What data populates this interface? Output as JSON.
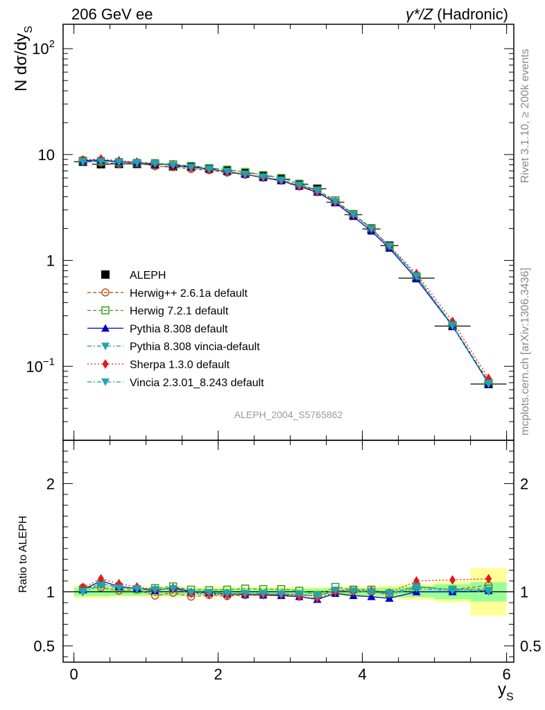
{
  "header": {
    "left": "206 GeV ee",
    "right_prefix": "γ*/Z",
    "right_suffix": " (Hadronic)"
  },
  "side": {
    "rivet": "Rivet 3.1.10, ≥ 200k events",
    "source": "mcplots.cern.ch [arXiv:1306.3436]"
  },
  "watermark": "ALEPH_2004_S5765862",
  "colors": {
    "data": "#000000",
    "herwigpp": "#b8570f",
    "herwig7": "#3b9e1c",
    "pythia": "#0000c0",
    "pythia_vincia": "#1fa3b8",
    "sherpa": "#e8161b",
    "vincia": "#1fa3b8",
    "band_inner": "#99ff99",
    "band_outer": "#ffff99"
  },
  "chart_data": [
    {
      "type": "line",
      "panel": "main",
      "ylabel_main": "N dσ/dy",
      "ylabel_sub": "S",
      "yscale": "log",
      "ylim": [
        0.02,
        170
      ],
      "xlim": [
        -0.15,
        6.1
      ],
      "y_tick_labels": [
        {
          "value": 100,
          "base": "10",
          "exp": "2"
        },
        {
          "value": 10,
          "base": "10",
          "exp": ""
        },
        {
          "value": 1,
          "base": "1",
          "exp": ""
        },
        {
          "value": 0.1,
          "base": "10",
          "exp": "−1"
        }
      ],
      "x": [
        0.125,
        0.375,
        0.625,
        0.875,
        1.125,
        1.375,
        1.625,
        1.875,
        2.125,
        2.375,
        2.625,
        2.875,
        3.125,
        3.375,
        3.625,
        3.875,
        4.125,
        4.375,
        4.75,
        5.25,
        5.75
      ],
      "xerr": [
        0.125,
        0.125,
        0.125,
        0.125,
        0.125,
        0.125,
        0.125,
        0.125,
        0.125,
        0.125,
        0.125,
        0.125,
        0.125,
        0.125,
        0.125,
        0.125,
        0.125,
        0.125,
        0.25,
        0.25,
        0.25
      ],
      "series": [
        {
          "name": "ALEPH",
          "key": "data",
          "marker": "square-filled",
          "values": [
            8.55,
            8.1,
            8.15,
            8.15,
            8.05,
            7.7,
            7.65,
            7.35,
            7.05,
            6.65,
            6.25,
            5.85,
            5.25,
            4.75,
            3.55,
            2.7,
            1.98,
            1.38,
            0.68,
            0.24,
            0.068
          ]
        },
        {
          "name": "Herwig++ 2.6.1a default",
          "key": "herwigpp",
          "marker": "circle-open",
          "dash": "5,3",
          "values": [
            8.9,
            8.4,
            8.2,
            8.3,
            7.75,
            7.6,
            7.3,
            7.1,
            6.75,
            6.45,
            6.05,
            5.7,
            5.1,
            4.55,
            3.6,
            2.75,
            1.98,
            1.35,
            0.71,
            0.245,
            0.072
          ]
        },
        {
          "name": "Herwig 7.2.1 default",
          "key": "herwig7",
          "marker": "square-open",
          "dash": "5,3",
          "values": [
            8.75,
            8.7,
            8.5,
            8.35,
            8.3,
            8.1,
            7.8,
            7.45,
            7.2,
            6.85,
            6.4,
            6.0,
            5.3,
            4.6,
            3.7,
            2.75,
            2.02,
            1.36,
            0.71,
            0.245,
            0.07
          ]
        },
        {
          "name": "Pythia 8.308 default",
          "key": "pythia",
          "marker": "triangle-up",
          "dash": "",
          "values": [
            8.75,
            8.9,
            8.55,
            8.4,
            8.15,
            8.0,
            7.65,
            7.3,
            6.9,
            6.5,
            6.05,
            5.65,
            5.0,
            4.4,
            3.5,
            2.6,
            1.89,
            1.3,
            0.67,
            0.24,
            0.069
          ]
        },
        {
          "name": "Pythia 8.308 vincia-default",
          "key": "pythia_vincia",
          "marker": "triangle-down",
          "dash": "6,3,2,3",
          "values": [
            8.5,
            8.7,
            8.5,
            8.35,
            8.2,
            7.9,
            7.55,
            7.25,
            6.9,
            6.5,
            6.1,
            5.7,
            5.1,
            4.55,
            3.6,
            2.7,
            1.98,
            1.35,
            0.7,
            0.24,
            0.068
          ]
        },
        {
          "name": "Sherpa 1.3.0 default",
          "key": "sherpa",
          "marker": "diamond",
          "dash": "2,3",
          "values": [
            8.9,
            9.1,
            8.75,
            8.5,
            8.2,
            7.95,
            7.5,
            7.2,
            6.85,
            6.5,
            6.1,
            5.7,
            5.0,
            4.45,
            3.55,
            2.7,
            2.0,
            1.37,
            0.75,
            0.265,
            0.077
          ]
        },
        {
          "name": "Vincia 2.3.01_8.243 default",
          "key": "vincia",
          "marker": "triangle-down",
          "dash": "6,3,2,3",
          "values": [
            8.6,
            8.55,
            8.45,
            8.4,
            8.2,
            7.95,
            7.6,
            7.3,
            6.95,
            6.55,
            6.15,
            5.75,
            5.15,
            4.55,
            3.6,
            2.72,
            1.98,
            1.36,
            0.71,
            0.245,
            0.069
          ]
        }
      ]
    },
    {
      "type": "line",
      "panel": "ratio",
      "ylabel": "Ratio to ALEPH",
      "xlabel_main": "y",
      "xlabel_sub": "S",
      "ylim": [
        0.35,
        2.4
      ],
      "y_ticks": [
        0.5,
        1,
        2
      ],
      "y_tick_labels": [
        "0.5",
        "1",
        "2"
      ],
      "x_ticks": [
        0,
        2,
        4,
        6
      ],
      "x_tick_labels": [
        "0",
        "2",
        "4",
        "6"
      ],
      "bands": {
        "inner": [
          0.04,
          0.04,
          0.035,
          0.035,
          0.035,
          0.035,
          0.03,
          0.03,
          0.03,
          0.03,
          0.03,
          0.03,
          0.03,
          0.03,
          0.03,
          0.035,
          0.035,
          0.04,
          0.05,
          0.07,
          0.09
        ],
        "outer": [
          0.06,
          0.06,
          0.05,
          0.05,
          0.05,
          0.05,
          0.045,
          0.045,
          0.045,
          0.045,
          0.045,
          0.045,
          0.045,
          0.045,
          0.045,
          0.05,
          0.05,
          0.06,
          0.075,
          0.1,
          0.22
        ]
      },
      "series": [
        {
          "key": "herwigpp",
          "values": [
            1.04,
            1.04,
            1.01,
            1.02,
            0.965,
            0.99,
            0.955,
            0.97,
            0.96,
            0.97,
            0.97,
            0.975,
            0.97,
            0.96,
            1.01,
            1.02,
            1.0,
            0.98,
            1.05,
            1.02,
            1.06
          ]
        },
        {
          "key": "herwig7",
          "values": [
            1.02,
            1.075,
            1.045,
            1.025,
            1.035,
            1.05,
            1.02,
            1.015,
            1.02,
            1.03,
            1.025,
            1.025,
            1.01,
            0.97,
            1.045,
            1.02,
            1.02,
            0.985,
            1.05,
            1.02,
            1.03
          ]
        },
        {
          "key": "pythia",
          "values": [
            1.02,
            1.1,
            1.05,
            1.03,
            1.01,
            1.04,
            1.0,
            0.99,
            0.98,
            0.975,
            0.97,
            0.965,
            0.955,
            0.93,
            0.985,
            0.965,
            0.955,
            0.94,
            1.0,
            1.0,
            1.01
          ]
        },
        {
          "key": "pythia_vincia",
          "values": [
            0.995,
            1.07,
            1.045,
            1.025,
            1.02,
            1.03,
            0.99,
            0.99,
            0.98,
            0.98,
            0.98,
            0.975,
            0.97,
            0.96,
            1.015,
            1.0,
            1.0,
            0.975,
            1.03,
            1.01,
            1.0
          ]
        },
        {
          "key": "sherpa",
          "values": [
            1.04,
            1.12,
            1.075,
            1.045,
            1.02,
            1.03,
            0.985,
            0.98,
            0.97,
            0.975,
            0.975,
            0.975,
            0.955,
            0.94,
            1.0,
            1.0,
            1.01,
            0.99,
            1.1,
            1.11,
            1.12
          ]
        },
        {
          "key": "vincia",
          "values": [
            1.005,
            1.055,
            1.035,
            1.03,
            1.02,
            1.03,
            0.995,
            0.995,
            0.985,
            0.985,
            0.985,
            0.98,
            0.98,
            0.96,
            1.015,
            1.005,
            1.0,
            0.985,
            1.045,
            1.02,
            1.015
          ]
        }
      ]
    }
  ]
}
